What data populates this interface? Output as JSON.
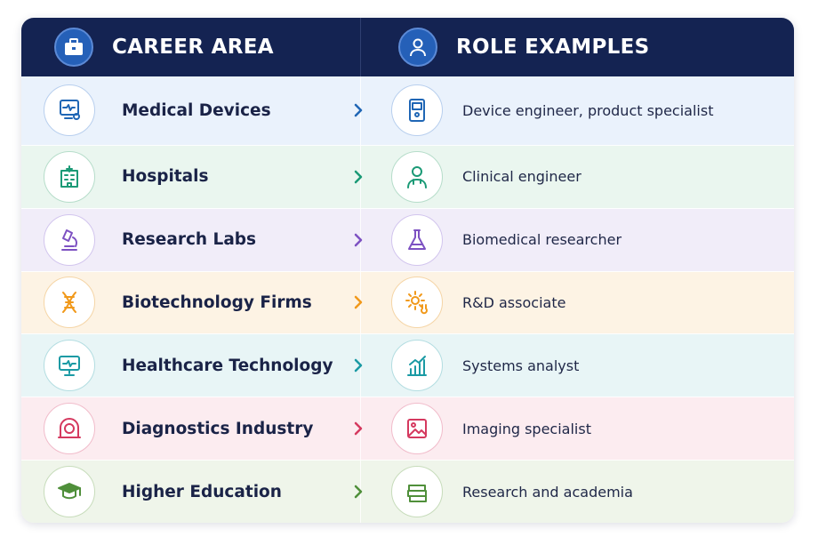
{
  "header": {
    "left_title": "CAREER AREA",
    "right_title": "ROLE EXAMPLES"
  },
  "rows": [
    {
      "area": "Medical Devices",
      "role": "Device engineer, product specialist"
    },
    {
      "area": "Hospitals",
      "role": "Clinical engineer"
    },
    {
      "area": "Research Labs",
      "role": "Biomedical researcher"
    },
    {
      "area": "Biotechnology Firms",
      "role": "R&D associate"
    },
    {
      "area": "Healthcare Technology",
      "role": "Systems analyst"
    },
    {
      "area": "Diagnostics Industry",
      "role": "Imaging specialist"
    },
    {
      "area": "Higher Education",
      "role": "Research and academia"
    }
  ]
}
